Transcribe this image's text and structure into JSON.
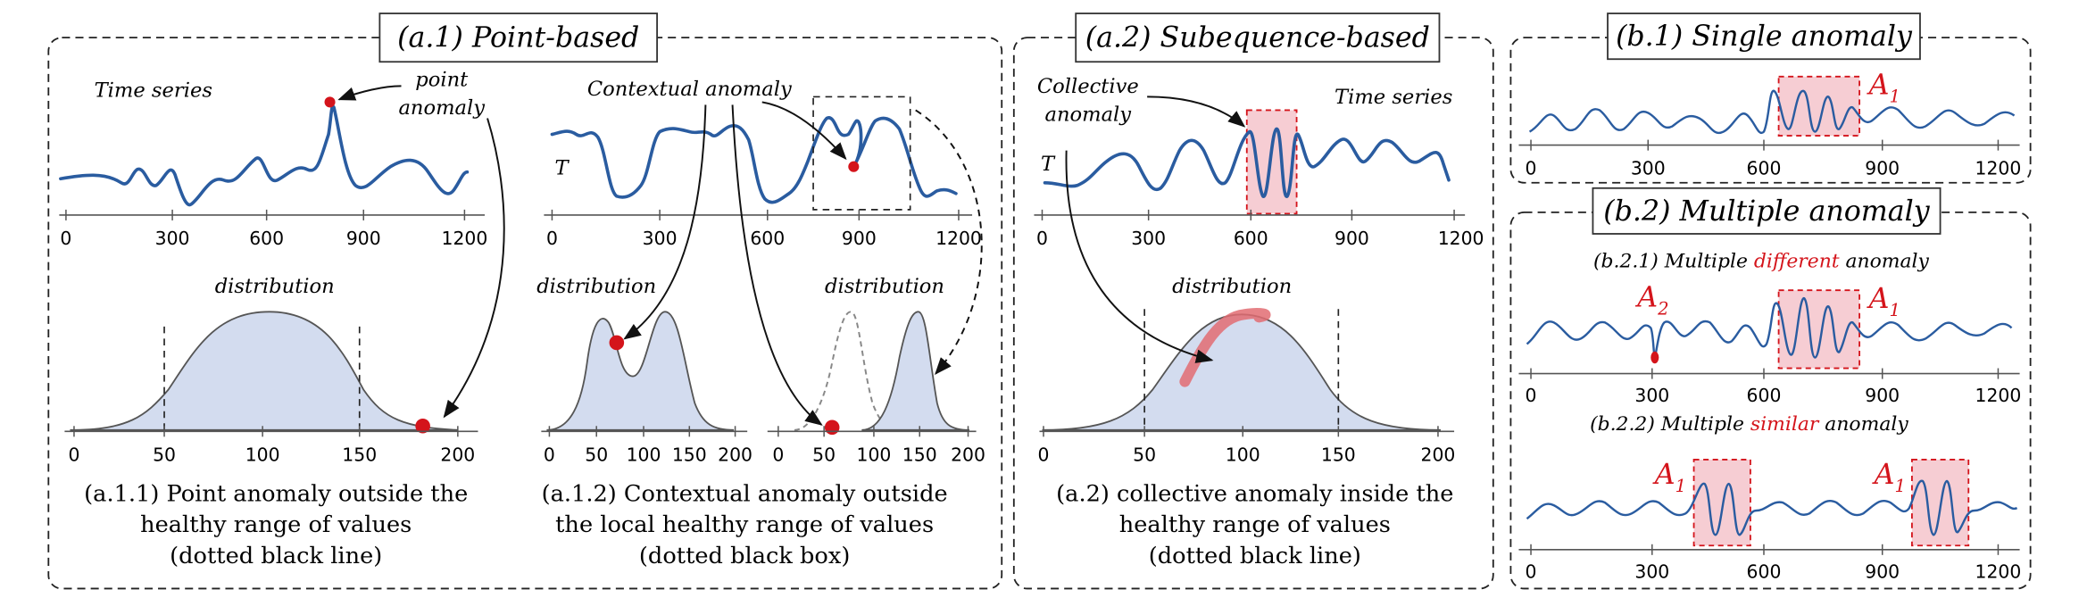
{
  "panels": {
    "a1": {
      "title": "(a.1) Point-based",
      "ts_label": "Time series",
      "point_label_1": "point",
      "point_label_2": "anomaly",
      "contextual_label": "Contextual anomaly",
      "t_label": "T",
      "ticks_top": [
        "0",
        "300",
        "600",
        "900",
        "1200"
      ],
      "dist_label": "distribution",
      "ticks_bottom": [
        "0",
        "50",
        "100",
        "150",
        "200"
      ],
      "caption1": [
        "(a.1.1) Point anomaly outside  the",
        "healthy  range of values",
        "(dotted black line)"
      ],
      "caption2": [
        "(a.1.2) Contextual anomaly outside",
        "the local  healthy range of values",
        "(dotted black box)"
      ]
    },
    "a2": {
      "title": "(a.2) Subequence-based",
      "collective_label_1": "Collective",
      "collective_label_2": "anomaly",
      "ts_label": "Time series",
      "t_label": "T",
      "ticks_top": [
        "0",
        "300",
        "600",
        "900",
        "1200"
      ],
      "dist_label": "distribution",
      "ticks_bottom": [
        "0",
        "50",
        "100",
        "150",
        "200"
      ],
      "caption": [
        "(a.2) collective anomaly inside the",
        "healthy range of values",
        "(dotted black line)"
      ]
    },
    "b1": {
      "title": "(b.1) Single anomaly",
      "anomaly_label": "A",
      "anomaly_sub": "1",
      "ticks": [
        "0",
        "300",
        "600",
        "900",
        "1200"
      ]
    },
    "b2": {
      "title": "(b.2) Multiple anomaly",
      "sub1_prefix": "(b.2.1) Multiple ",
      "sub1_keyword": "different",
      "sub1_suffix": " anomaly",
      "sub2_prefix": "(b.2.2) Multiple ",
      "sub2_keyword": "similar",
      "sub2_suffix": " anomaly",
      "a1_label": "A",
      "a1_sub": "1",
      "a2_label": "A",
      "a2_sub": "2",
      "ticks": [
        "0",
        "300",
        "600",
        "900",
        "1200"
      ]
    }
  },
  "colors": {
    "series": "#2a5ca0",
    "anomaly_red": "#d4141b",
    "anomaly_fill": "#f6cdd3",
    "distribution_fill": "#d3dcef"
  }
}
